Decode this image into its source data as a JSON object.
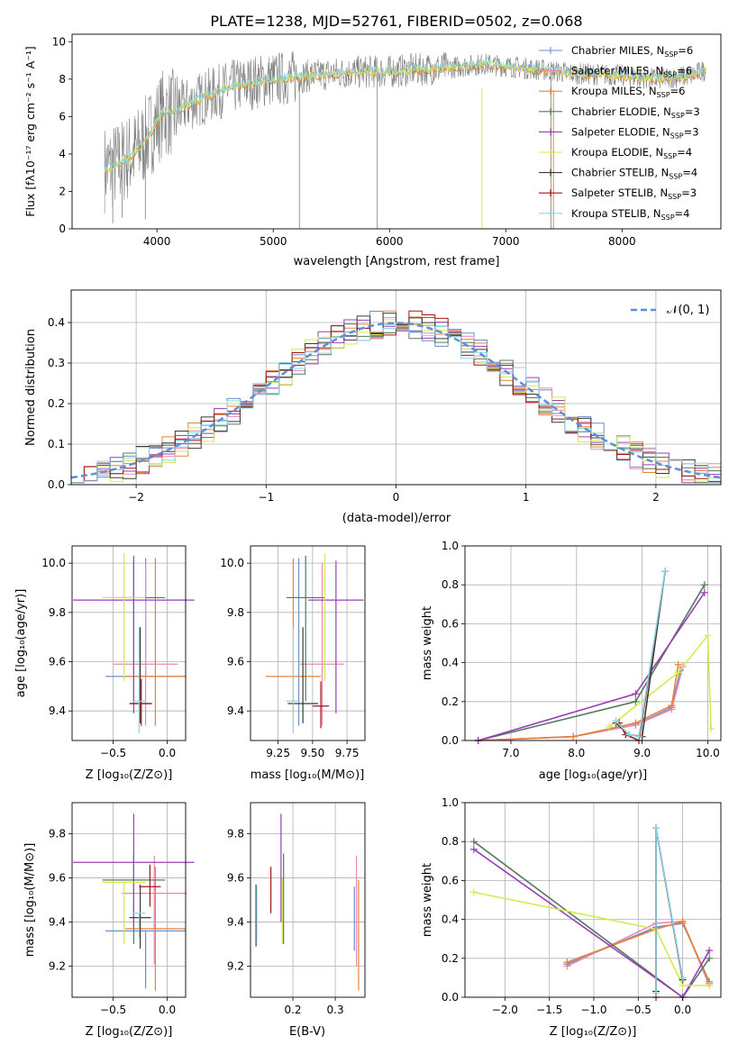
{
  "title": "PLATE=1238, MJD=52761, FIBERID=0502, z=0.068",
  "colors": {
    "grid": "#b0b0b0",
    "gray": "#808080",
    "normal": "#5b8fd6",
    "series": [
      "#6a8fc9",
      "#e888b8",
      "#e8823a",
      "#55795a",
      "#9a3fb7",
      "#d4ea4f",
      "#3a3a3a",
      "#a31515",
      "#86d6e6"
    ]
  },
  "legend": [
    {
      "label": "Chabrier MILES, N",
      "sub": "SSP",
      "tail": "=6"
    },
    {
      "label": "Salpeter MILES, N",
      "sub": "SSP",
      "tail": "=6"
    },
    {
      "label": "Kroupa MILES, N",
      "sub": "SSP",
      "tail": "=6"
    },
    {
      "label": "Chabrier ELODIE, N",
      "sub": "SSP",
      "tail": "=3"
    },
    {
      "label": "Salpeter ELODIE, N",
      "sub": "SSP",
      "tail": "=3"
    },
    {
      "label": "Kroupa ELODIE, N",
      "sub": "SSP",
      "tail": "=4"
    },
    {
      "label": "Chabrier STELIB, N",
      "sub": "SSP",
      "tail": "=4"
    },
    {
      "label": "Salpeter STELIB, N",
      "sub": "SSP",
      "tail": "=3"
    },
    {
      "label": "Kroupa STELIB, N",
      "sub": "SSP",
      "tail": "=4"
    }
  ],
  "axes_text": {
    "p1_xlabel": "wavelength [Angstrom, rest frame]",
    "p1_ylabel": "Flux [fλ10⁻¹⁷ erg cm⁻² s⁻¹ A⁻¹]",
    "p2_xlabel": "(data-model)/error",
    "p2_ylabel": "Normed distribution",
    "p2_legend": "𝒩(0, 1)",
    "z_xlabel": "Z [log₁₀(Z/Z⊙)]",
    "mass_xlabel": "mass [log₁₀(M/M⊙)]",
    "age_ylabel": "age  [log₁₀(age/yr)]",
    "age_xlabel": "age  [log₁₀(age/yr)]",
    "mw_ylabel": "mass weight",
    "mass_ylabel": "mass [log₁₀(M/M⊙)]",
    "ebv_xlabel": "E(B-V)"
  },
  "chart_data": [
    {
      "type": "line",
      "title": "PLATE=1238, MJD=52761, FIBERID=0502, z=0.068",
      "xlabel": "wavelength [Angstrom, rest frame]",
      "ylabel": "Flux [fλ10⁻¹⁷ erg cm⁻² s⁻¹ A⁻¹]",
      "xlim": [
        3270,
        8850
      ],
      "ylim": [
        0,
        10.4
      ],
      "xticks": [
        4000,
        5000,
        6000,
        7000,
        8000
      ],
      "yticks": [
        0,
        2,
        4,
        6,
        8,
        10
      ],
      "data_continuum": [
        [
          3550,
          3.2
        ],
        [
          3650,
          3.4
        ],
        [
          3750,
          3.8
        ],
        [
          3850,
          4.3
        ],
        [
          3950,
          5.2
        ],
        [
          4050,
          6.2
        ],
        [
          4150,
          6.2
        ],
        [
          4250,
          6.6
        ],
        [
          4400,
          7.0
        ],
        [
          4600,
          7.5
        ],
        [
          4800,
          7.8
        ],
        [
          5000,
          8.0
        ],
        [
          5200,
          8.1
        ],
        [
          5500,
          8.3
        ],
        [
          5800,
          8.4
        ],
        [
          6000,
          8.4
        ],
        [
          6200,
          8.5
        ],
        [
          6500,
          8.6
        ],
        [
          6800,
          8.8
        ],
        [
          7000,
          8.7
        ],
        [
          7300,
          8.5
        ],
        [
          7600,
          8.3
        ],
        [
          8000,
          8.2
        ],
        [
          8300,
          8.0
        ],
        [
          8600,
          8.2
        ],
        [
          8720,
          8.5
        ]
      ],
      "grid": false,
      "legend_loc": "right"
    },
    {
      "type": "bar",
      "xlabel": "(data-model)/error",
      "ylabel": "Normed distribution",
      "xlim": [
        -2.5,
        2.5
      ],
      "ylim": [
        0,
        0.48
      ],
      "xticks": [
        -2,
        -1,
        0,
        1,
        2
      ],
      "yticks": [
        0.0,
        0.1,
        0.2,
        0.3,
        0.4
      ],
      "bin_width": 0.1,
      "bin_start": -2.5,
      "reference": {
        "name": "𝒩(0, 1)",
        "mean": 0,
        "std": 1
      },
      "grid": true,
      "legend_loc": "top-right"
    },
    {
      "type": "scatter",
      "xlabel": "Z [log₁₀(Z/Z⊙)]",
      "ylabel": "age  [log₁₀(age/yr)]",
      "xlim": [
        -0.88,
        0.17
      ],
      "ylim": [
        9.28,
        10.07
      ],
      "xticks": [
        -0.5,
        0.0
      ],
      "yticks": [
        9.4,
        9.6,
        9.8,
        10.0
      ],
      "points": [
        {
          "x": -0.2,
          "xerr": 0.37,
          "y": 9.54,
          "yerr_lo": 0.0,
          "yerr_hi": 0.48,
          "s": 0
        },
        {
          "x": -0.2,
          "xerr": 0.3,
          "y": 9.59,
          "yerr_lo": 0.25,
          "yerr_hi": 0.41,
          "s": 1
        },
        {
          "x": -0.11,
          "xerr": 0.28,
          "y": 9.54,
          "yerr_lo": 0.2,
          "yerr_hi": 0.48,
          "s": 2
        },
        {
          "x": -0.31,
          "xerr": 0.29,
          "y": 9.86,
          "yerr_lo": 0.42,
          "yerr_hi": 0.17,
          "s": 3
        },
        {
          "x": -0.31,
          "xerr": 0.56,
          "y": 9.85,
          "yerr_lo": 0.46,
          "yerr_hi": 0.16,
          "s": 4
        },
        {
          "x": -0.4,
          "xerr": 0.2,
          "y": 9.86,
          "yerr_lo": 0.34,
          "yerr_hi": 0.18,
          "s": 5
        },
        {
          "x": -0.25,
          "xerr": 0.1,
          "y": 9.43,
          "yerr_lo": 0.08,
          "yerr_hi": 0.31,
          "s": 6
        },
        {
          "x": -0.24,
          "xerr": 0.1,
          "y": 9.43,
          "yerr_lo": 0.09,
          "yerr_hi": 0.1,
          "s": 7
        },
        {
          "x": -0.26,
          "xerr": 0.06,
          "y": 9.44,
          "yerr_lo": 0.13,
          "yerr_hi": 0.3,
          "s": 8
        }
      ]
    },
    {
      "type": "scatter",
      "xlabel": "mass [log₁₀(M/M⊙)]",
      "xlim": [
        9.05,
        9.88
      ],
      "xticks": [
        9.25,
        9.5,
        9.75
      ],
      "yticks": [
        9.4,
        9.6,
        9.8,
        10.0
      ],
      "ylim": [
        9.28,
        10.07
      ],
      "points": [
        {
          "x": 9.4,
          "xerr": 0.0,
          "y": 9.54,
          "yerr_lo": 0.2,
          "yerr_hi": 0.48,
          "s": 0
        },
        {
          "x": 9.57,
          "xerr": 0.16,
          "y": 9.59,
          "yerr_lo": 0.25,
          "yerr_hi": 0.41,
          "s": 1
        },
        {
          "x": 9.36,
          "xerr": 0.2,
          "y": 9.54,
          "yerr_lo": 0.2,
          "yerr_hi": 0.48,
          "s": 2
        },
        {
          "x": 9.45,
          "xerr": 0.14,
          "y": 9.86,
          "yerr_lo": 0.42,
          "yerr_hi": 0.17,
          "s": 3
        },
        {
          "x": 9.67,
          "xerr": 0.2,
          "y": 9.85,
          "yerr_lo": 0.46,
          "yerr_hi": 0.16,
          "s": 4
        },
        {
          "x": 9.59,
          "xerr": 0.0,
          "y": 9.86,
          "yerr_lo": 0.34,
          "yerr_hi": 0.18,
          "s": 5
        },
        {
          "x": 9.43,
          "xerr": 0.11,
          "y": 9.43,
          "yerr_lo": 0.08,
          "yerr_hi": 0.31,
          "s": 6
        },
        {
          "x": 9.56,
          "xerr": 0.06,
          "y": 9.42,
          "yerr_lo": 0.09,
          "yerr_hi": 0.1,
          "s": 7
        },
        {
          "x": 9.36,
          "xerr": 0.05,
          "y": 9.44,
          "yerr_lo": 0.13,
          "yerr_hi": 0.3,
          "s": 8
        }
      ]
    },
    {
      "type": "line",
      "xlabel": "age  [log₁₀(age/yr)]",
      "ylabel": "mass weight",
      "xlim": [
        6.3,
        10.2
      ],
      "ylim": [
        0,
        1.0
      ],
      "xticks": [
        7,
        8,
        9,
        10
      ],
      "yticks": [
        0.0,
        0.2,
        0.4,
        0.6,
        0.8,
        1.0
      ],
      "grid": true,
      "series": [
        {
          "s": 0,
          "x": [
            6.5,
            7.95,
            8.9,
            9.45,
            9.58
          ],
          "y": [
            0.0,
            0.02,
            0.08,
            0.17,
            0.36
          ]
        },
        {
          "s": 1,
          "x": [
            6.5,
            7.95,
            8.9,
            9.45,
            9.62
          ],
          "y": [
            0.0,
            0.02,
            0.08,
            0.16,
            0.38
          ]
        },
        {
          "s": 2,
          "x": [
            6.5,
            7.95,
            8.9,
            9.45,
            9.55
          ],
          "y": [
            0.0,
            0.02,
            0.09,
            0.18,
            0.39
          ]
        },
        {
          "s": 3,
          "x": [
            6.5,
            8.9,
            9.95
          ],
          "y": [
            0.0,
            0.2,
            0.8
          ]
        },
        {
          "s": 4,
          "x": [
            6.5,
            8.9,
            9.95
          ],
          "y": [
            0.0,
            0.24,
            0.76
          ]
        },
        {
          "s": 5,
          "x": [
            8.5,
            9.55,
            10.0,
            10.05
          ],
          "y": [
            0.07,
            0.35,
            0.54,
            0.06
          ]
        },
        {
          "s": 6,
          "x": [
            8.6,
            8.8,
            9.0,
            9.35
          ],
          "y": [
            0.09,
            0.03,
            0.02,
            0.87
          ]
        },
        {
          "s": 7,
          "x": [
            8.65,
            8.75,
            8.95,
            9.35
          ],
          "y": [
            0.09,
            0.03,
            0.0,
            0.87
          ]
        },
        {
          "s": 8,
          "x": [
            8.6,
            8.8,
            8.95,
            9.35
          ],
          "y": [
            0.1,
            0.03,
            0.02,
            0.87
          ]
        }
      ]
    },
    {
      "type": "scatter",
      "xlabel": "Z [log₁₀(Z/Z⊙)]",
      "ylabel": "mass [log₁₀(M/M⊙)]",
      "xlim": [
        -0.88,
        0.17
      ],
      "ylim": [
        9.06,
        9.94
      ],
      "xticks": [
        -0.5,
        0.0
      ],
      "yticks": [
        9.2,
        9.4,
        9.6,
        9.8
      ],
      "points": [
        {
          "x": -0.2,
          "xerr": 0.37,
          "y": 9.36,
          "yerr_lo": 0.26,
          "yerr_hi": 0.0,
          "s": 0
        },
        {
          "x": -0.12,
          "xerr": 0.3,
          "y": 9.53,
          "yerr_lo": 0.32,
          "yerr_hi": 0.17,
          "s": 1
        },
        {
          "x": -0.11,
          "xerr": 0.28,
          "y": 9.37,
          "yerr_lo": 0.28,
          "yerr_hi": 0.28,
          "s": 2
        },
        {
          "x": -0.31,
          "xerr": 0.29,
          "y": 9.59,
          "yerr_lo": 0.29,
          "yerr_hi": 0.12,
          "s": 3
        },
        {
          "x": -0.31,
          "xerr": 0.56,
          "y": 9.67,
          "yerr_lo": 0.29,
          "yerr_hi": 0.22,
          "s": 4
        },
        {
          "x": -0.4,
          "xerr": 0.2,
          "y": 9.58,
          "yerr_lo": 0.28,
          "yerr_hi": 0.0,
          "s": 5
        },
        {
          "x": -0.25,
          "xerr": 0.1,
          "y": 9.42,
          "yerr_lo": 0.14,
          "yerr_hi": 0.15,
          "s": 6
        },
        {
          "x": -0.16,
          "xerr": 0.1,
          "y": 9.56,
          "yerr_lo": 0.09,
          "yerr_hi": 0.1,
          "s": 7
        },
        {
          "x": -0.26,
          "xerr": 0.06,
          "y": 9.44,
          "yerr_lo": 0.11,
          "yerr_hi": 0.0,
          "s": 8
        }
      ]
    },
    {
      "type": "scatter",
      "xlabel": "E(B-V)",
      "xlim": [
        0.1,
        0.37
      ],
      "ylim": [
        9.06,
        9.94
      ],
      "xticks": [
        0.2,
        0.3
      ],
      "yticks": [
        9.2,
        9.4,
        9.6,
        9.8
      ],
      "points": [
        {
          "x": 0.345,
          "y": 9.56,
          "yerr_lo": 0.29,
          "yerr_hi": 0.0,
          "s": 0
        },
        {
          "x": 0.35,
          "y": 9.55,
          "yerr_lo": 0.35,
          "yerr_hi": 0.15,
          "s": 1
        },
        {
          "x": 0.355,
          "y": 9.35,
          "yerr_lo": 0.26,
          "yerr_hi": 0.24,
          "s": 2
        },
        {
          "x": 0.178,
          "y": 9.5,
          "yerr_lo": 0.2,
          "yerr_hi": 0.21,
          "s": 3
        },
        {
          "x": 0.172,
          "y": 9.67,
          "yerr_lo": 0.27,
          "yerr_hi": 0.22,
          "s": 4
        },
        {
          "x": 0.175,
          "y": 9.45,
          "yerr_lo": 0.15,
          "yerr_hi": 0.15,
          "s": 5
        },
        {
          "x": 0.113,
          "y": 9.43,
          "yerr_lo": 0.14,
          "yerr_hi": 0.14,
          "s": 6
        },
        {
          "x": 0.148,
          "y": 9.54,
          "yerr_lo": 0.1,
          "yerr_hi": 0.11,
          "s": 7
        },
        {
          "x": 0.115,
          "y": 9.42,
          "yerr_lo": 0.1,
          "yerr_hi": 0.14,
          "s": 8
        }
      ]
    },
    {
      "type": "line",
      "xlabel": "Z [log₁₀(Z/Z⊙)]",
      "ylabel": "mass weight",
      "xlim": [
        -2.45,
        0.43
      ],
      "ylim": [
        0,
        1.0
      ],
      "xticks": [
        -2.0,
        -1.5,
        -1.0,
        -0.5,
        0.0
      ],
      "yticks": [
        0.0,
        0.2,
        0.4,
        0.6,
        0.8,
        1.0
      ],
      "grid": true,
      "series": [
        {
          "s": 0,
          "x": [
            -1.3,
            -0.3,
            0.0,
            0.3
          ],
          "y": [
            0.17,
            0.36,
            0.38,
            0.08
          ]
        },
        {
          "s": 1,
          "x": [
            -1.3,
            -0.3,
            0.0,
            0.3
          ],
          "y": [
            0.16,
            0.38,
            0.39,
            0.06
          ]
        },
        {
          "s": 2,
          "x": [
            -1.3,
            -0.3,
            0.0,
            0.3
          ],
          "y": [
            0.18,
            0.35,
            0.39,
            0.07
          ]
        },
        {
          "s": 3,
          "x": [
            -2.35,
            0.0,
            0.3
          ],
          "y": [
            0.8,
            0.0,
            0.2
          ]
        },
        {
          "s": 4,
          "x": [
            -2.35,
            0.0,
            0.3
          ],
          "y": [
            0.76,
            0.0,
            0.24
          ]
        },
        {
          "s": 5,
          "x": [
            -2.35,
            -0.3,
            0.0,
            0.3
          ],
          "y": [
            0.54,
            0.35,
            0.06,
            0.06
          ]
        },
        {
          "s": 6,
          "x": [
            -0.3,
            -0.3,
            0.0
          ],
          "y": [
            0.03,
            0.87,
            0.09
          ]
        },
        {
          "s": 7,
          "x": [
            -0.3,
            -0.3,
            0.0
          ],
          "y": [
            0.0,
            0.87,
            0.09
          ]
        },
        {
          "s": 8,
          "x": [
            -0.3,
            -0.3,
            0.0
          ],
          "y": [
            0.02,
            0.87,
            0.1
          ]
        }
      ]
    }
  ]
}
